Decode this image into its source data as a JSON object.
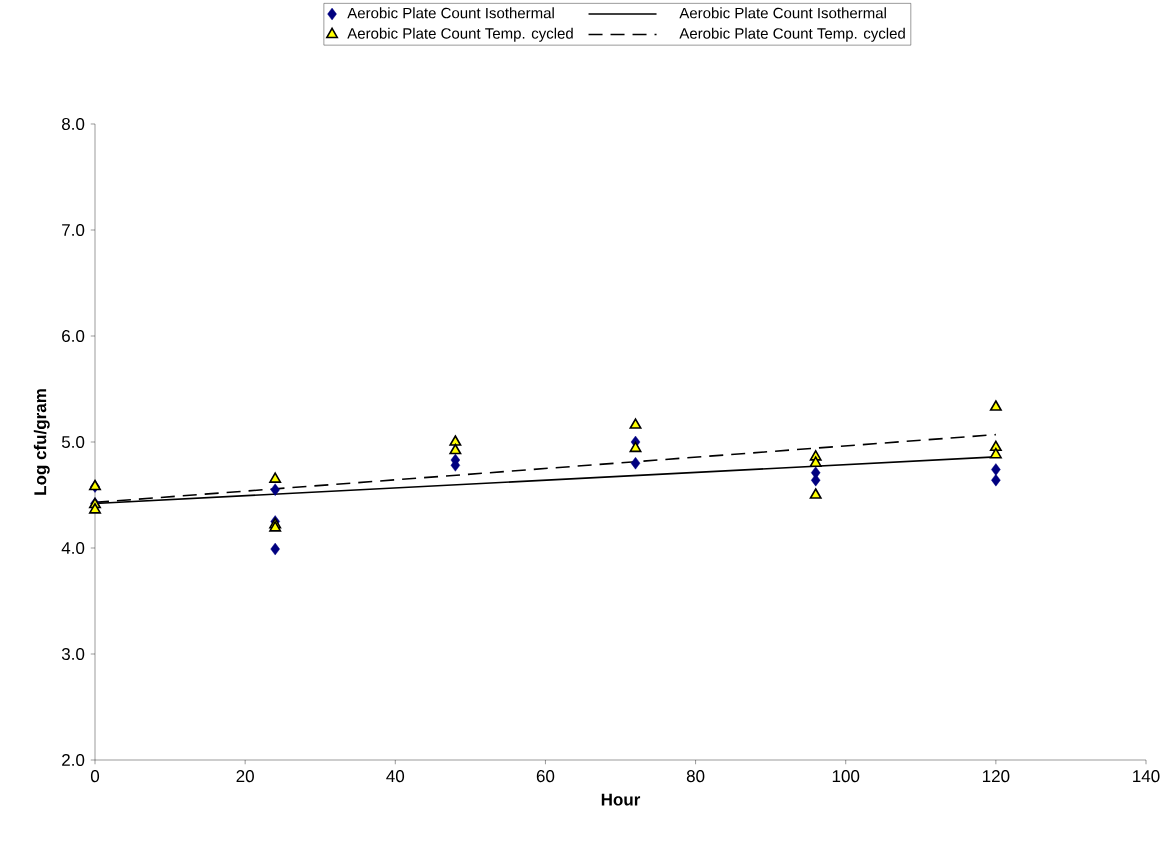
{
  "chart_data": {
    "type": "scatter",
    "xlabel": "Hour",
    "ylabel": "Log cfu/gram",
    "xlim": [
      0,
      140
    ],
    "ylim": [
      2,
      8
    ],
    "xticks": [
      0,
      20,
      40,
      60,
      80,
      100,
      120,
      140
    ],
    "yticks": [
      {
        "value": 2,
        "label": "2.0"
      },
      {
        "value": 3,
        "label": "3.0"
      },
      {
        "value": 4,
        "label": "4.0"
      },
      {
        "value": 5,
        "label": "5.0"
      },
      {
        "value": 6,
        "label": "6.0"
      },
      {
        "value": 7,
        "label": "7.0"
      },
      {
        "value": 8,
        "label": "8.0"
      }
    ],
    "legend": "top",
    "series": [
      {
        "name": "Aerobic Plate Count Isothermal",
        "type": "scatter",
        "marker": "diamond",
        "color": "#000080",
        "x": [
          0,
          0,
          24,
          24,
          24,
          48,
          48,
          72,
          72,
          96,
          96,
          120,
          120
        ],
        "values": [
          4.58,
          4.42,
          4.55,
          4.25,
          3.99,
          4.83,
          4.78,
          5.0,
          4.8,
          4.71,
          4.64,
          4.74,
          4.64
        ]
      },
      {
        "name": "Aerobic Plate Count Isothermal",
        "type": "line",
        "line_style": "solid",
        "color": "#000000",
        "x": [
          0,
          120
        ],
        "values": [
          4.42,
          4.86
        ]
      },
      {
        "name": "Aerobic Plate Count Temp. cycled",
        "type": "scatter",
        "marker": "triangle",
        "color": "#ffff00",
        "x": [
          0,
          0,
          0,
          24,
          24,
          24,
          48,
          48,
          72,
          72,
          96,
          96,
          96,
          120,
          120,
          120
        ],
        "values": [
          4.58,
          4.41,
          4.36,
          4.65,
          4.22,
          4.19,
          5.0,
          4.92,
          5.16,
          4.94,
          4.86,
          4.8,
          4.5,
          5.33,
          4.95,
          4.88
        ]
      },
      {
        "name": "Aerobic Plate Count Temp. cycled",
        "type": "line",
        "line_style": "dashed",
        "color": "#000000",
        "x": [
          0,
          120
        ],
        "values": [
          4.43,
          5.07
        ]
      }
    ]
  }
}
